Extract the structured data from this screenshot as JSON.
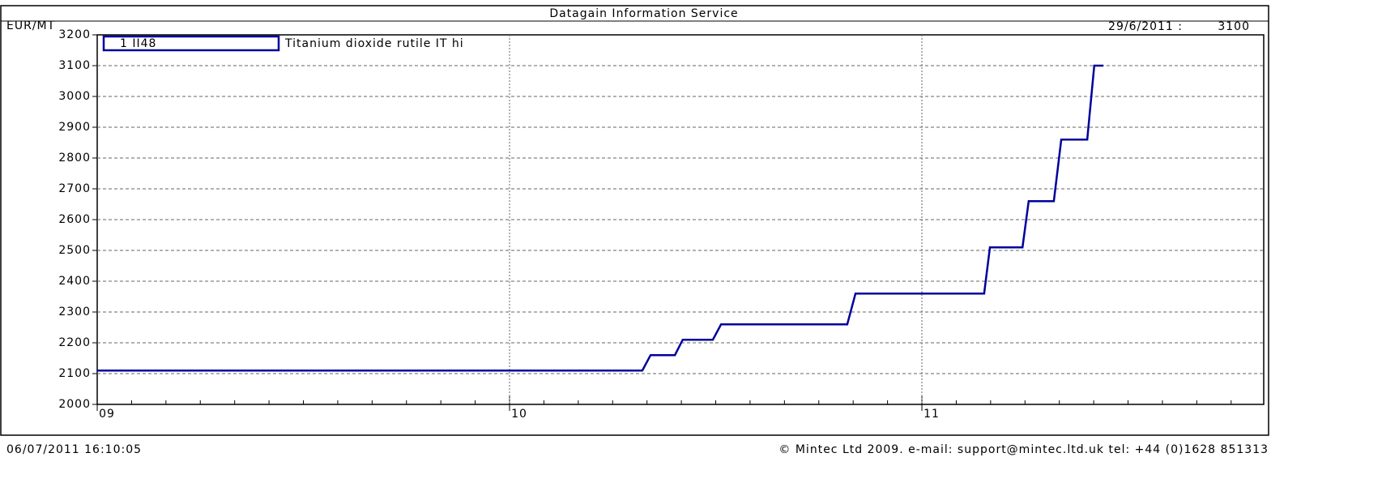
{
  "chart_data": {
    "type": "line",
    "title": "Datagain Information Service",
    "y_label": "EUR/MT",
    "last_date": "29/6/2011 :",
    "last_value_label": "3100",
    "legend_code": "1 II48",
    "footer_left": "06/07/2011 16:10:05",
    "footer_right": "© Mintec Ltd 2009. e-mail: support@mintec.ltd.uk tel: +44 (0)1628 851313",
    "xlim": [
      2009.0,
      2011.829
    ],
    "xticks": [
      {
        "value": 2009,
        "label": "09"
      },
      {
        "value": 2010,
        "label": "10"
      },
      {
        "value": 2011,
        "label": "11"
      }
    ],
    "ylim": [
      2000,
      3200
    ],
    "yticks": [
      2000,
      2100,
      2200,
      2300,
      2400,
      2500,
      2600,
      2700,
      2800,
      2900,
      3000,
      3100,
      3200
    ],
    "grid": true,
    "series": [
      {
        "name": "Titanium dioxide rutile IT hi",
        "color": "#00009c",
        "x": [
          2009.0,
          2010.322,
          2010.342,
          2010.401,
          2010.42,
          2010.493,
          2010.513,
          2010.819,
          2010.839,
          2011.151,
          2011.165,
          2011.244,
          2011.259,
          2011.32,
          2011.338,
          2011.401,
          2011.418,
          2011.44
        ],
        "values": [
          2110,
          2110,
          2160,
          2160,
          2210,
          2210,
          2260,
          2260,
          2360,
          2360,
          2510,
          2510,
          2660,
          2660,
          2860,
          2860,
          3100,
          3100
        ]
      }
    ]
  }
}
